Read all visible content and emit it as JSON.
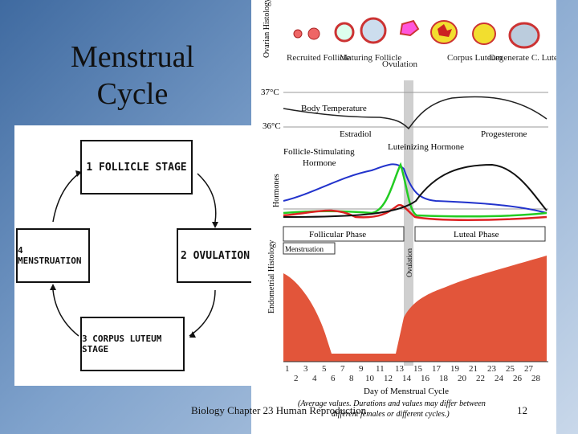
{
  "slide": {
    "title_line1": "Menstrual",
    "title_line2": "Cycle",
    "footer_text": "Biology Chapter 23 Human Reproduction",
    "page_number": "12"
  },
  "cycle_diagram": {
    "stage1": "1 FOLLICLE STAGE",
    "stage2": "2 OVULATION",
    "stage3": "3 CORPUS LUTEUM STAGE",
    "stage4": "4 MENSTRUATION"
  },
  "figure": {
    "ovarian_label": "Ovarian Histology",
    "ovarian_stages": [
      "Recruited Follicle",
      "Maturing Follicle",
      "Ovulation",
      "Corpus Luteum",
      "Degenerate C. Luteum"
    ],
    "temp_high": "37°C",
    "temp_low": "36°C",
    "body_temp_label": "Body Temperature",
    "hormones_label": "Hormones",
    "estradiol_label": "Estradiol",
    "fsh_label_1": "Follicle-Stimulating",
    "fsh_label_2": "Hormone",
    "lh_label": "Luteinizing Hormone",
    "progesterone_label": "Progesterone",
    "follicular_phase": "Follicular Phase",
    "luteal_phase": "Luteal Phase",
    "menstruation_label": "Menstruation",
    "ovulation_label": "Ovulation",
    "endometrial_label": "Endometrial Histology",
    "days_top": [
      "1",
      "3",
      "5",
      "7",
      "9",
      "11",
      "13",
      "15",
      "17",
      "19",
      "21",
      "23",
      "25",
      "27"
    ],
    "days_bottom": [
      "2",
      "4",
      "6",
      "8",
      "10",
      "12",
      "14",
      "16",
      "18",
      "20",
      "22",
      "24",
      "26",
      "28"
    ],
    "xaxis_label": "Day of Menstrual Cycle",
    "note_line1": "(Average values. Durations and values may differ between",
    "note_line2": "different females or different cycles.)",
    "colors": {
      "fsh": "#2233cc",
      "lh": "#22cc22",
      "estradiol": "#dd2222",
      "progesterone": "#111111",
      "endometrium": "#e2553a"
    }
  }
}
